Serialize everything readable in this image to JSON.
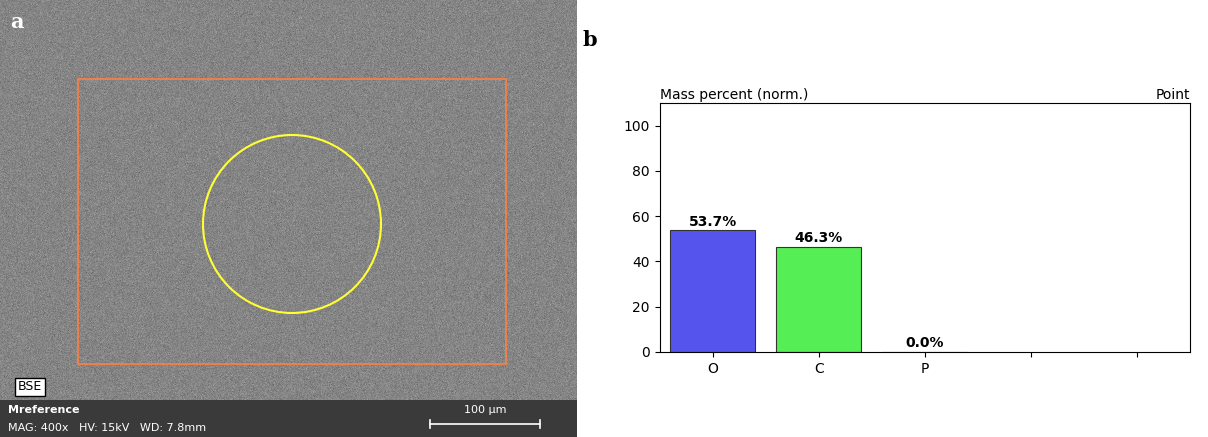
{
  "image_panel": {
    "panel_label": "a",
    "detector": "BSE",
    "sample": "Mreference",
    "info": "MAG: 400x   HV: 15kV   WD: 7.8mm",
    "scale_bar": "100 µm"
  },
  "chart_data": {
    "type": "bar",
    "panel_label": "b",
    "title": "Mass percent (norm.)",
    "subtitle": "Point",
    "categories": [
      "O",
      "C",
      "P",
      null,
      null
    ],
    "values": [
      53.7,
      46.3,
      0.0,
      null,
      null
    ],
    "value_labels": [
      "53.7%",
      "46.3%",
      "0.0%",
      null,
      null
    ],
    "colors": [
      "#5555ee",
      "#55ee55",
      "#55ee55",
      null,
      null
    ],
    "ylim": [
      0,
      110
    ],
    "yticks": [
      0,
      20,
      40,
      60,
      80,
      100
    ],
    "data_labels": true,
    "grid": false
  }
}
